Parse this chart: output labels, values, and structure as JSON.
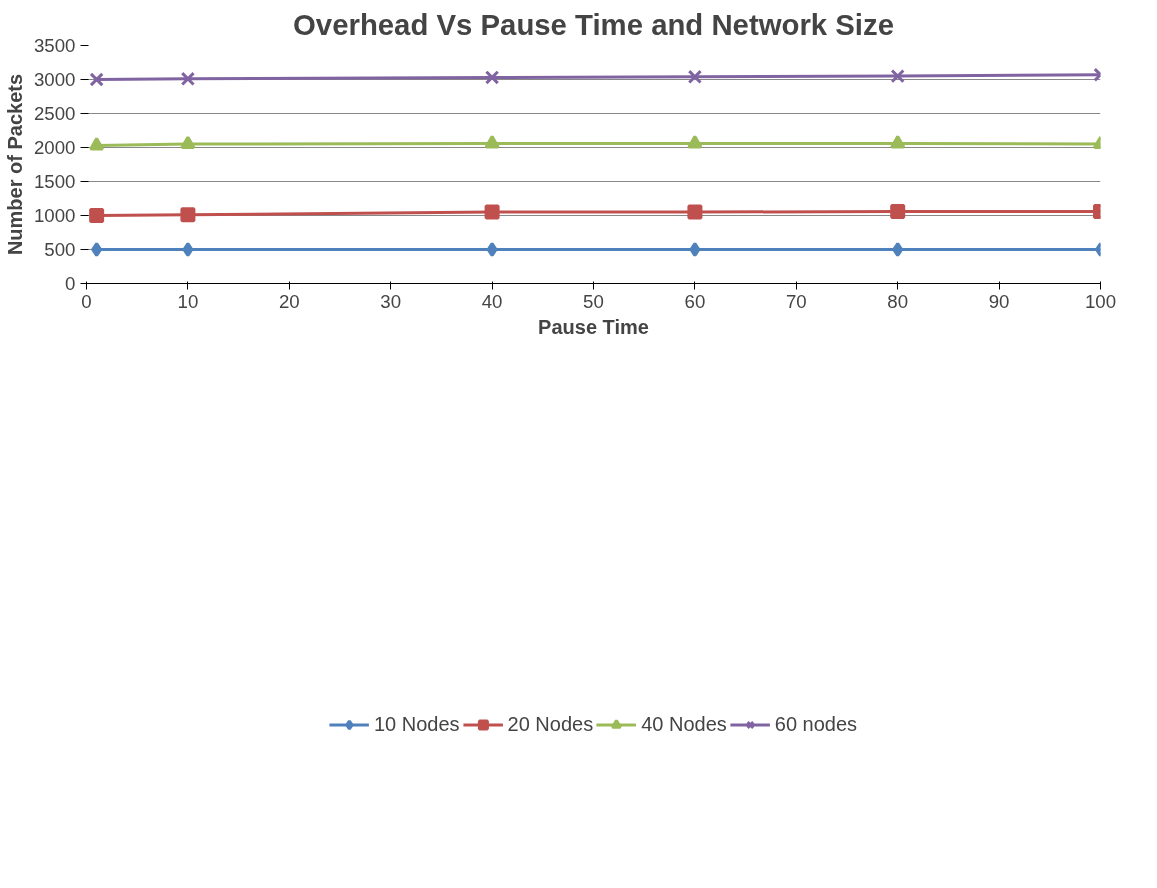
{
  "chart_data": {
    "type": "line",
    "title": "Overhead Vs Pause Time and Network Size",
    "xlabel": "Pause Time",
    "ylabel": "Number of Packets",
    "x": [
      1,
      10,
      40,
      60,
      80,
      100
    ],
    "series": [
      {
        "name": "10 Nodes",
        "color": "#4f81bd",
        "marker": "diamond",
        "values": [
          500,
          500,
          500,
          500,
          500,
          500
        ]
      },
      {
        "name": "20 Nodes",
        "color": "#c0504d",
        "marker": "square",
        "values": [
          1000,
          1010,
          1050,
          1050,
          1060,
          1060
        ]
      },
      {
        "name": "40 Nodes",
        "color": "#9bbb59",
        "marker": "triangle",
        "values": [
          2030,
          2050,
          2060,
          2060,
          2060,
          2050
        ]
      },
      {
        "name": "60 nodes",
        "color": "#8064a2",
        "marker": "cross",
        "values": [
          3000,
          3010,
          3030,
          3040,
          3050,
          3070
        ]
      }
    ],
    "xlim": [
      0,
      100
    ],
    "xticks": [
      0,
      10,
      20,
      30,
      40,
      50,
      60,
      70,
      80,
      90,
      100
    ],
    "ylim": [
      0,
      3500
    ],
    "yticks": [
      0,
      500,
      1000,
      1500,
      2000,
      2500,
      3000,
      3500
    ],
    "grid": "y",
    "legend": "bottom",
    "line_style": "solid"
  }
}
